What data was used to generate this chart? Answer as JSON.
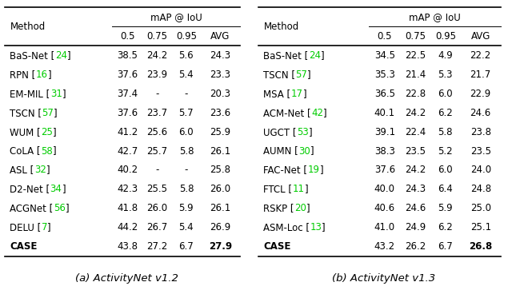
{
  "table_a": {
    "caption": "(a) ActivityNet v1.2",
    "header_main": "mAP @ IoU",
    "header_cols": [
      "0.5",
      "0.75",
      "0.95",
      "AVG"
    ],
    "rows": [
      {
        "method": "BaS-Net",
        "ref": "24",
        "vals": [
          "38.5",
          "24.2",
          "5.6",
          "24.3"
        ],
        "bold_last": false
      },
      {
        "method": "RPN",
        "ref": "16",
        "vals": [
          "37.6",
          "23.9",
          "5.4",
          "23.3"
        ],
        "bold_last": false
      },
      {
        "method": "EM-MIL",
        "ref": "31",
        "vals": [
          "37.4",
          "-",
          "-",
          "20.3"
        ],
        "bold_last": false
      },
      {
        "method": "TSCN",
        "ref": "57",
        "vals": [
          "37.6",
          "23.7",
          "5.7",
          "23.6"
        ],
        "bold_last": false
      },
      {
        "method": "WUM",
        "ref": "25",
        "vals": [
          "41.2",
          "25.6",
          "6.0",
          "25.9"
        ],
        "bold_last": false
      },
      {
        "method": "CoLA",
        "ref": "58",
        "vals": [
          "42.7",
          "25.7",
          "5.8",
          "26.1"
        ],
        "bold_last": false
      },
      {
        "method": "ASL",
        "ref": "32",
        "vals": [
          "40.2",
          "-",
          "-",
          "25.8"
        ],
        "bold_last": false
      },
      {
        "method": "D2-Net",
        "ref": "34",
        "vals": [
          "42.3",
          "25.5",
          "5.8",
          "26.0"
        ],
        "bold_last": false
      },
      {
        "method": "ACGNet",
        "ref": "56",
        "vals": [
          "41.8",
          "26.0",
          "5.9",
          "26.1"
        ],
        "bold_last": false
      },
      {
        "method": "DELU",
        "ref": "7",
        "vals": [
          "44.2",
          "26.7",
          "5.4",
          "26.9"
        ],
        "bold_last": false
      },
      {
        "method": "CASE",
        "ref": "",
        "vals": [
          "43.8",
          "27.2",
          "6.7",
          "27.9"
        ],
        "bold_last": true
      }
    ]
  },
  "table_b": {
    "caption": "(b) ActivityNet v1.3",
    "header_main": "mAP @ IoU",
    "header_cols": [
      "0.5",
      "0.75",
      "0.95",
      "AVG"
    ],
    "rows": [
      {
        "method": "BaS-Net",
        "ref": "24",
        "vals": [
          "34.5",
          "22.5",
          "4.9",
          "22.2"
        ],
        "bold_last": false
      },
      {
        "method": "TSCN",
        "ref": "57",
        "vals": [
          "35.3",
          "21.4",
          "5.3",
          "21.7"
        ],
        "bold_last": false
      },
      {
        "method": "MSA",
        "ref": "17",
        "vals": [
          "36.5",
          "22.8",
          "6.0",
          "22.9"
        ],
        "bold_last": false
      },
      {
        "method": "ACM-Net",
        "ref": "42",
        "vals": [
          "40.1",
          "24.2",
          "6.2",
          "24.6"
        ],
        "bold_last": false
      },
      {
        "method": "UGCT",
        "ref": "53",
        "vals": [
          "39.1",
          "22.4",
          "5.8",
          "23.8"
        ],
        "bold_last": false
      },
      {
        "method": "AUMN",
        "ref": "30",
        "vals": [
          "38.3",
          "23.5",
          "5.2",
          "23.5"
        ],
        "bold_last": false
      },
      {
        "method": "FAC-Net",
        "ref": "19",
        "vals": [
          "37.6",
          "24.2",
          "6.0",
          "24.0"
        ],
        "bold_last": false
      },
      {
        "method": "FTCL",
        "ref": "11",
        "vals": [
          "40.0",
          "24.3",
          "6.4",
          "24.8"
        ],
        "bold_last": false
      },
      {
        "method": "RSKP",
        "ref": "20",
        "vals": [
          "40.6",
          "24.6",
          "5.9",
          "25.0"
        ],
        "bold_last": false
      },
      {
        "method": "ASM-Loc",
        "ref": "13",
        "vals": [
          "41.0",
          "24.9",
          "6.2",
          "25.1"
        ],
        "bold_last": false
      },
      {
        "method": "CASE",
        "ref": "",
        "vals": [
          "43.2",
          "26.2",
          "6.7",
          "26.8"
        ],
        "bold_last": true
      }
    ]
  },
  "ref_color": "#00CC00",
  "bg_color": "#FFFFFF",
  "fontsize": 8.5,
  "caption_fontsize": 9.5,
  "lw_thick": 1.2,
  "lw_thin": 0.7
}
